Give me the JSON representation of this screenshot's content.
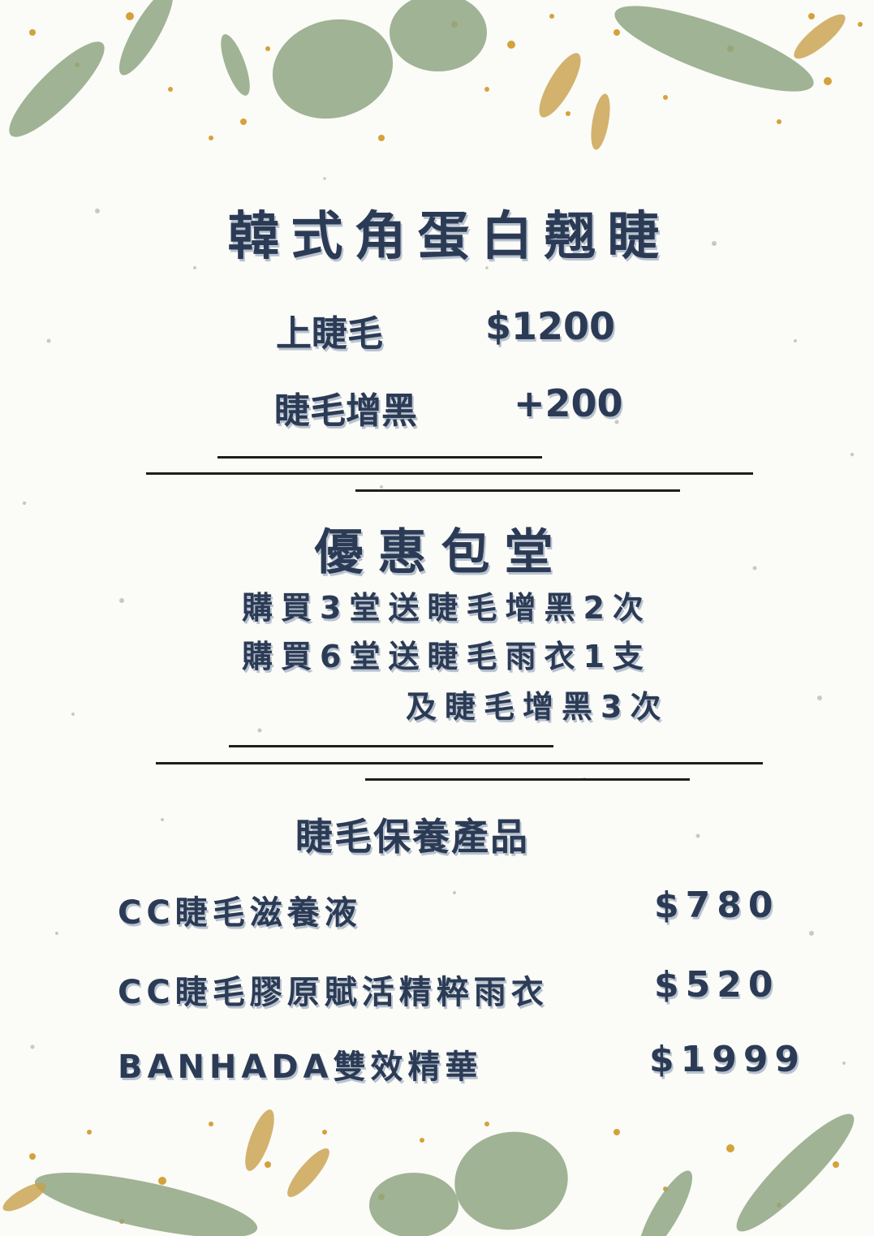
{
  "title": "韓式角蛋白翹睫",
  "services": [
    {
      "name": "上睫毛",
      "price": "$1200"
    },
    {
      "name": "睫毛增黑",
      "price": "+200"
    }
  ],
  "promotion": {
    "title": "優惠包堂",
    "lines": [
      "購買3堂送睫毛增黑2次",
      "購買6堂送睫毛雨衣1支",
      "及睫毛增黑3次"
    ]
  },
  "products": {
    "title": "睫毛保養產品",
    "items": [
      {
        "name": "CC睫毛滋養液",
        "price": "$780"
      },
      {
        "name": "CC睫毛膠原賦活精粹雨衣",
        "price": "$520"
      },
      {
        "name": "BANHADA雙效精華",
        "price": "$1999"
      }
    ]
  },
  "colors": {
    "text": "#2c3b55",
    "text_shadow": "#b9c3cf",
    "background": "#fbfbf8",
    "leaf_green": "#8fa682",
    "gold": "#d4a23a"
  },
  "decorations": [
    "eucalyptus-leaves",
    "gold-glitter-dots"
  ]
}
